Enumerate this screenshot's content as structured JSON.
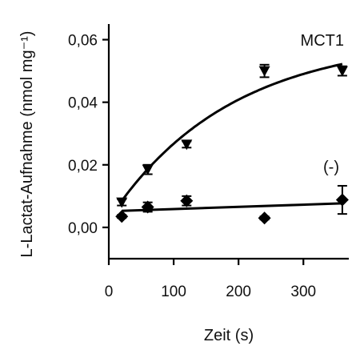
{
  "chart_data": {
    "type": "scatter",
    "title": "",
    "xlabel": "Zeit (s)",
    "ylabel": "L-Lactat-Aufnahme (nmol mg⁻¹)",
    "xlim": [
      0,
      370
    ],
    "ylim": [
      -0.01,
      0.065
    ],
    "xticks": [
      0,
      100,
      200,
      300
    ],
    "xtick_labels": [
      "0",
      "100",
      "200",
      "300"
    ],
    "yticks": [
      0.0,
      0.02,
      0.04,
      0.06
    ],
    "ytick_labels": [
      "0,00",
      "0,02",
      "0,04",
      "0,06"
    ],
    "grid": false,
    "series": [
      {
        "name": "MCT1",
        "marker": "triangle-down",
        "color": "#000000",
        "x": [
          20,
          60,
          120,
          240,
          360
        ],
        "y": [
          0.008,
          0.0185,
          0.0265,
          0.05,
          0.05
        ],
        "err": [
          0.001,
          0.0015,
          0.001,
          0.002,
          0.0015
        ],
        "fit": "saturation",
        "fit_curve": {
          "x0": 20,
          "y0": 0.0085,
          "ymax": 0.0605,
          "k": 0.0054
        }
      },
      {
        "name": "(-)",
        "marker": "diamond",
        "color": "#000000",
        "x": [
          20,
          60,
          120,
          240,
          360
        ],
        "y": [
          0.0035,
          0.0065,
          0.0085,
          0.003,
          0.0088
        ],
        "err": [
          0.0005,
          0.0015,
          0.0015,
          0.0005,
          0.0045
        ],
        "fit": "linear",
        "fit_line": {
          "x": [
            20,
            360
          ],
          "y": [
            0.0053,
            0.0077
          ]
        }
      }
    ]
  }
}
